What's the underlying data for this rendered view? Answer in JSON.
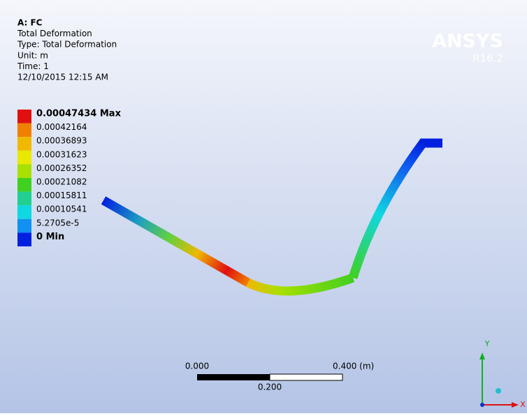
{
  "header": {
    "lines": [
      "A: FC",
      "Total Deformation",
      "Type: Total Deformation",
      "Unit: m",
      "Time: 1",
      "12/10/2015 12:15 AM"
    ]
  },
  "legend": {
    "entries": [
      {
        "label": "0.00047434 Max",
        "color": "#e01010"
      },
      {
        "label": "0.00042164",
        "color": "#f08000"
      },
      {
        "label": "0.00036893",
        "color": "#f0b800"
      },
      {
        "label": "0.00031623",
        "color": "#e8e800"
      },
      {
        "label": "0.00026352",
        "color": "#a8e000"
      },
      {
        "label": "0.00021082",
        "color": "#40d020"
      },
      {
        "label": "0.00015811",
        "color": "#20d090"
      },
      {
        "label": "0.00010541",
        "color": "#10d8e0"
      },
      {
        "label": "5.2705e-5",
        "color": "#1090f0"
      },
      {
        "label": "0 Min",
        "color": "#0020e0"
      }
    ]
  },
  "logo": {
    "brand": "ANSYS",
    "version": "R16.2"
  },
  "scale_bar": {
    "left": "0.000",
    "right": "0.400 (m)",
    "middle": "0.200"
  },
  "triad": {
    "y": "Y",
    "x": "X"
  }
}
